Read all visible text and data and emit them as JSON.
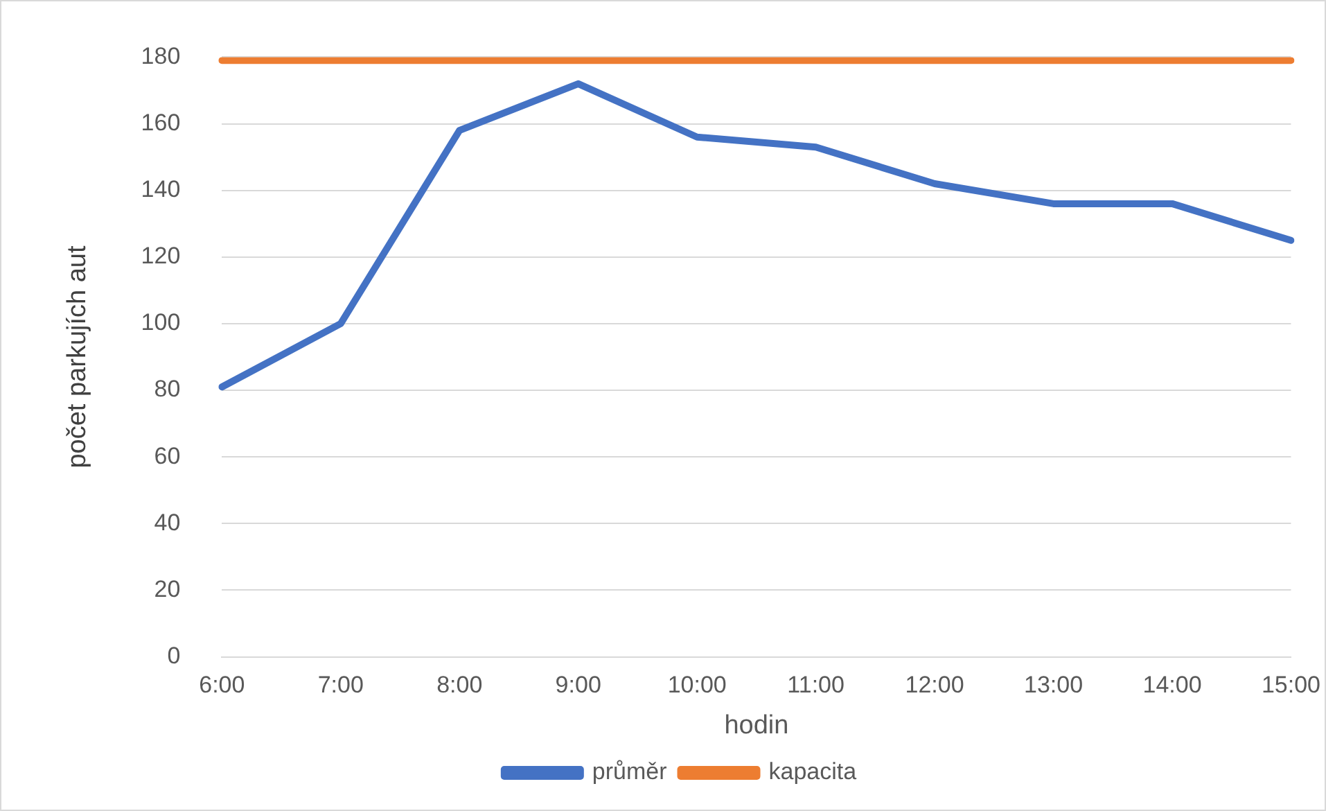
{
  "chart_data": {
    "type": "line",
    "xlabel": "hodin",
    "ylabel": "počet parkujích aut",
    "categories": [
      "6:00",
      "7:00",
      "8:00",
      "9:00",
      "10:00",
      "11:00",
      "12:00",
      "13:00",
      "14:00",
      "15:00"
    ],
    "series": [
      {
        "name": "průměr",
        "color": "#4472c4",
        "values": [
          81,
          100,
          158,
          172,
          156,
          153,
          142,
          136,
          136,
          125
        ]
      },
      {
        "name": "kapacita",
        "color": "#ed7d31",
        "values": [
          179,
          179,
          179,
          179,
          179,
          179,
          179,
          179,
          179,
          179
        ]
      }
    ],
    "ylim": [
      0,
      180
    ],
    "yticks": [
      0,
      20,
      40,
      60,
      80,
      100,
      120,
      140,
      160,
      180
    ],
    "grid": "y",
    "legend": "bottom",
    "marker": "none",
    "line_style": "solid"
  }
}
